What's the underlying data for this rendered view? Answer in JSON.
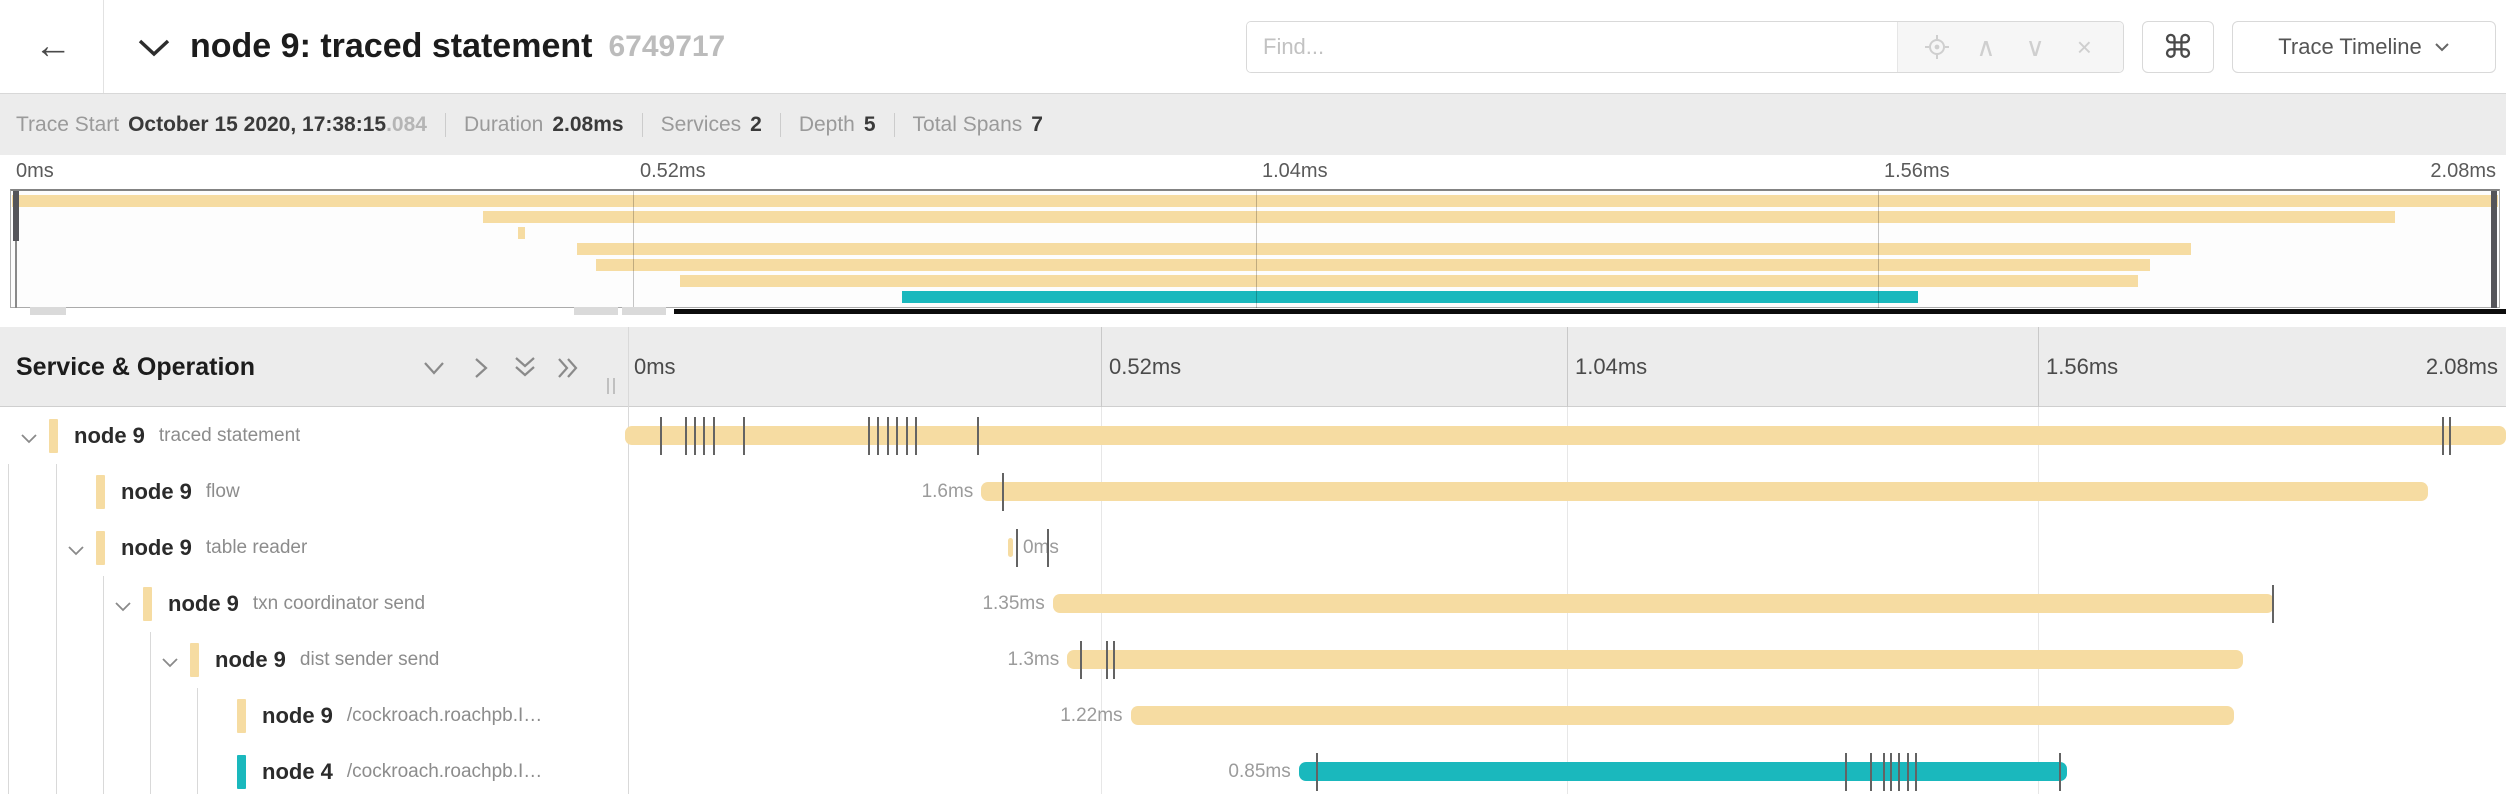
{
  "header": {
    "title": "node 9: traced statement",
    "trace_id": "6749717",
    "find_placeholder": "Find...",
    "view_selector_label": "Trace Timeline",
    "back_icon_glyph": "←",
    "command_icon_glyph": "⌘",
    "find_up_glyph": "∧",
    "find_down_glyph": "∨",
    "find_close_glyph": "×"
  },
  "summary": {
    "items": [
      {
        "label": "Trace Start",
        "value": "October 15 2020, 17:38:15",
        "suffix": ".084"
      },
      {
        "label": "Duration",
        "value": "2.08ms",
        "suffix": ""
      },
      {
        "label": "Services",
        "value": "2",
        "suffix": ""
      },
      {
        "label": "Depth",
        "value": "5",
        "suffix": ""
      },
      {
        "label": "Total Spans",
        "value": "7",
        "suffix": ""
      }
    ]
  },
  "axis_ticks": [
    "0ms",
    "0.52ms",
    "1.04ms",
    "1.56ms",
    "2.08ms"
  ],
  "timeline": {
    "column_header": "Service & Operation",
    "total_duration_ms": 2.08
  },
  "spans": [
    {
      "service": "node 9",
      "operation": "traced statement",
      "depth": 0,
      "expandable": true,
      "color": "tan",
      "start_ms": 0,
      "duration_ms": 2.08,
      "duration_label": "",
      "label_side": "none",
      "log_ticks_ms": [
        0.04,
        0.067,
        0.077,
        0.087,
        0.098,
        0.132,
        0.27,
        0.28,
        0.291,
        0.301,
        0.312,
        0.322,
        0.39,
        2.01,
        2.018
      ]
    },
    {
      "service": "node 9",
      "operation": "flow",
      "depth": 1,
      "expandable": false,
      "color": "tan",
      "start_ms": 0.394,
      "duration_ms": 1.6,
      "duration_label": "1.6ms",
      "label_side": "left",
      "log_ticks_ms": [
        0.418
      ]
    },
    {
      "service": "node 9",
      "operation": "table reader",
      "depth": 1,
      "expandable": true,
      "color": "tan",
      "start_ms": 0.423,
      "duration_ms": 0.006,
      "duration_label": "0ms",
      "label_side": "right",
      "log_ticks_ms": [
        0.433,
        0.468
      ]
    },
    {
      "service": "node 9",
      "operation": "txn coordinator send",
      "depth": 2,
      "expandable": true,
      "color": "tan",
      "start_ms": 0.473,
      "duration_ms": 1.35,
      "duration_label": "1.35ms",
      "label_side": "left",
      "log_ticks_ms": [
        1.822
      ]
    },
    {
      "service": "node 9",
      "operation": "dist sender send",
      "depth": 3,
      "expandable": true,
      "color": "tan",
      "start_ms": 0.489,
      "duration_ms": 1.3,
      "duration_label": "1.3ms",
      "label_side": "left",
      "log_ticks_ms": [
        0.504,
        0.533,
        0.541
      ]
    },
    {
      "service": "node 9",
      "operation": "/cockroach.roachpb.I…",
      "depth": 4,
      "expandable": false,
      "color": "tan",
      "start_ms": 0.559,
      "duration_ms": 1.22,
      "duration_label": "1.22ms",
      "label_side": "left",
      "log_ticks_ms": []
    },
    {
      "service": "node 4",
      "operation": "/cockroach.roachpb.I…",
      "depth": 4,
      "expandable": false,
      "color": "teal",
      "start_ms": 0.745,
      "duration_ms": 0.85,
      "duration_label": "0.85ms",
      "label_side": "left",
      "log_ticks_ms": [
        0.765,
        1.35,
        1.378,
        1.392,
        1.4,
        1.409,
        1.419,
        1.428,
        1.587
      ]
    }
  ],
  "colors": {
    "tan": "#F6DCA2",
    "teal": "#1AB8BD",
    "tick": "#636363"
  }
}
